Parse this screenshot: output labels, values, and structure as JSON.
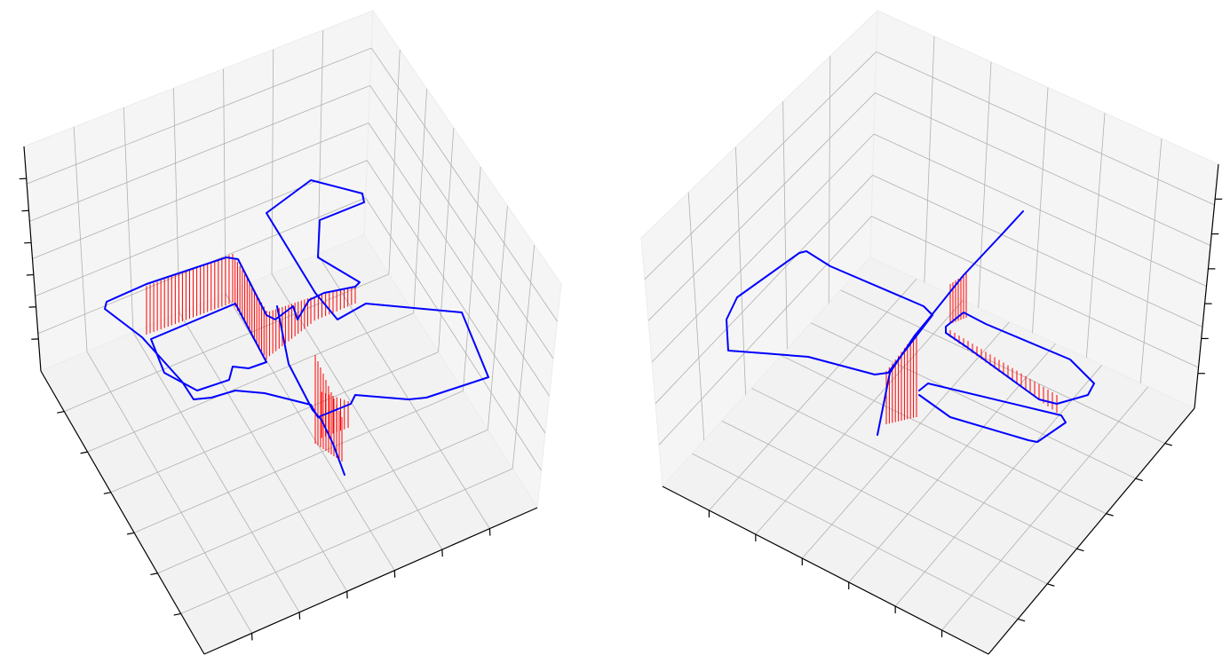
{
  "colors": {
    "trajectory": "#0000ff",
    "projection": "#ff0000",
    "pane": "#f2f2f2",
    "grid": "#b0b0b0"
  },
  "chart_data": [
    {
      "type": "line3d",
      "title": "",
      "xlabel": "",
      "ylabel": "",
      "zlabel": "",
      "series": [
        {
          "name": "trajectory",
          "color": "#0000ff",
          "style": "solid line"
        },
        {
          "name": "vertical-projection",
          "color": "#ff0000",
          "style": "vertical segments"
        }
      ],
      "tick_labels_visible": false
    },
    {
      "type": "line3d",
      "title": "",
      "xlabel": "",
      "ylabel": "",
      "zlabel": "",
      "series": [
        {
          "name": "trajectory",
          "color": "#0000ff",
          "style": "solid line"
        },
        {
          "name": "vertical-projection",
          "color": "#ff0000",
          "style": "vertical segments"
        }
      ],
      "tick_labels_visible": false
    }
  ]
}
